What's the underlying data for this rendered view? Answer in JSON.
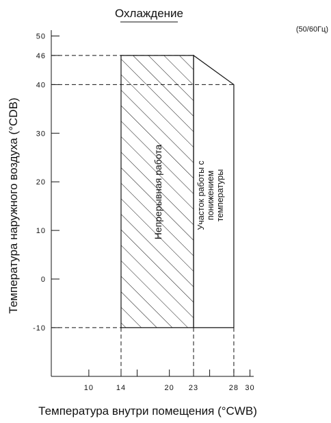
{
  "chart_data": {
    "type": "operating-range-diagram",
    "title": "Охлаждение",
    "frequency_note": "(50/60Гц)",
    "xlabel": "Температура внутри помещения (°CWB)",
    "ylabel": "Температура наружного воздуха (°CDB)",
    "x_ticks": [
      10,
      14,
      16,
      20,
      23,
      25,
      28,
      30
    ],
    "x_tick_labels": [
      {
        "value": 10,
        "label": "10"
      },
      {
        "value": 14,
        "label": "14"
      },
      {
        "value": 20,
        "label": "20"
      },
      {
        "value": 23,
        "label": "23"
      },
      {
        "value": 28,
        "label": "28"
      },
      {
        "value": 30,
        "label": "30"
      }
    ],
    "y_ticks": [
      {
        "value": 50,
        "label": "50"
      },
      {
        "value": 46,
        "label": "46"
      },
      {
        "value": 40,
        "label": "40"
      },
      {
        "value": 30,
        "label": "30"
      },
      {
        "value": 20,
        "label": "20"
      },
      {
        "value": 10,
        "label": "10"
      },
      {
        "value": 0,
        "label": "0"
      },
      {
        "value": -10,
        "label": "-10"
      }
    ],
    "regions": [
      {
        "name": "continuous",
        "label": "Непрерывная работа",
        "hatched": true,
        "polygon": [
          [
            14,
            -10
          ],
          [
            14,
            46
          ],
          [
            23,
            46
          ],
          [
            23,
            -10
          ]
        ]
      },
      {
        "name": "reduced",
        "label_lines": [
          "Участок работы с",
          "понижением",
          "температуры"
        ],
        "hatched": false,
        "polygon": [
          [
            23,
            -10
          ],
          [
            23,
            46
          ],
          [
            28,
            40
          ],
          [
            28,
            -10
          ]
        ]
      }
    ],
    "dashed_h": [
      {
        "y": 46,
        "x_to": 23
      },
      {
        "y": 40,
        "x_to": 28
      },
      {
        "y": -10,
        "x_to": 14
      }
    ],
    "dashed_v": [
      14,
      23,
      28
    ]
  }
}
